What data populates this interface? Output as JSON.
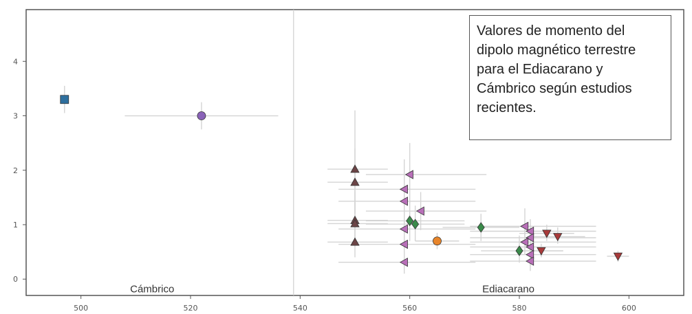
{
  "annotation": "Valores de momento del dipolo magnético terrestre para el Ediacarano y Cámbrico según estudios recientes.",
  "chart_data": {
    "type": "scatter",
    "title": "",
    "xlabel": "",
    "ylabel": "",
    "xlim": [
      490,
      610
    ],
    "ylim": [
      -0.3,
      4.95
    ],
    "xticks": [
      500,
      520,
      540,
      560,
      580,
      600
    ],
    "yticks": [
      0,
      1,
      2,
      3,
      4
    ],
    "grid": false,
    "boundary_x": 538.8,
    "period_labels": [
      {
        "text": "Cámbrico",
        "x": 513,
        "y": -0.18
      },
      {
        "text": "Ediacarano",
        "x": 578,
        "y": -0.18
      }
    ],
    "series": [
      {
        "marker": "square",
        "color": "#2e6f9e",
        "points": [
          {
            "x": 497,
            "y": 3.3,
            "xerr": [
              497,
              497
            ],
            "yerr": [
              3.55,
              3.05
            ]
          }
        ]
      },
      {
        "marker": "circle",
        "color": "#8a63b8",
        "points": [
          {
            "x": 522,
            "y": 3.0,
            "xerr": [
              508,
              536
            ],
            "yerr": [
              3.25,
              2.75
            ]
          }
        ]
      },
      {
        "marker": "triangle-up",
        "color": "#6b4446",
        "points": [
          {
            "x": 550,
            "y": 2.02,
            "xerr": [
              545,
              556
            ],
            "yerr": [
              3.1,
              1.2
            ]
          },
          {
            "x": 550,
            "y": 1.78,
            "xerr": [
              545,
              556
            ],
            "yerr": [
              2.4,
              1.2
            ]
          },
          {
            "x": 550,
            "y": 1.08,
            "xerr": [
              545,
              556
            ],
            "yerr": [
              1.6,
              0.6
            ]
          },
          {
            "x": 550,
            "y": 1.02,
            "xerr": [
              545,
              556
            ],
            "yerr": [
              1.4,
              0.6
            ]
          },
          {
            "x": 550,
            "y": 0.68,
            "xerr": [
              545,
              556
            ],
            "yerr": [
              1.0,
              0.4
            ]
          }
        ]
      },
      {
        "marker": "triangle-left",
        "color": "#b86fb8",
        "points": [
          {
            "x": 560,
            "y": 1.92,
            "xerr": [
              552,
              574
            ],
            "yerr": [
              2.5,
              1.4
            ]
          },
          {
            "x": 559,
            "y": 1.65,
            "xerr": [
              547,
              572
            ],
            "yerr": [
              2.2,
              1.2
            ]
          },
          {
            "x": 559,
            "y": 1.43,
            "xerr": [
              547,
              572
            ],
            "yerr": [
              1.9,
              1.0
            ]
          },
          {
            "x": 562,
            "y": 1.25,
            "xerr": [
              552,
              574
            ],
            "yerr": [
              1.6,
              0.9
            ]
          },
          {
            "x": 559,
            "y": 0.92,
            "xerr": [
              547,
              572
            ],
            "yerr": [
              1.2,
              0.6
            ]
          },
          {
            "x": 559,
            "y": 0.64,
            "xerr": [
              547,
              572
            ],
            "yerr": [
              0.9,
              0.4
            ]
          },
          {
            "x": 559,
            "y": 0.31,
            "xerr": [
              547,
              572
            ],
            "yerr": [
              0.5,
              0.1
            ]
          },
          {
            "x": 581,
            "y": 0.97,
            "xerr": [
              571,
              594
            ],
            "yerr": [
              1.3,
              0.7
            ]
          },
          {
            "x": 582,
            "y": 0.88,
            "xerr": [
              571,
              594
            ],
            "yerr": [
              1.1,
              0.6
            ]
          },
          {
            "x": 582,
            "y": 0.76,
            "xerr": [
              571,
              594
            ],
            "yerr": [
              1.0,
              0.5
            ]
          },
          {
            "x": 581,
            "y": 0.68,
            "xerr": [
              571,
              594
            ],
            "yerr": [
              0.9,
              0.45
            ]
          },
          {
            "x": 582,
            "y": 0.59,
            "xerr": [
              571,
              594
            ],
            "yerr": [
              0.8,
              0.4
            ]
          },
          {
            "x": 582,
            "y": 0.45,
            "xerr": [
              571,
              594
            ],
            "yerr": [
              0.65,
              0.25
            ]
          },
          {
            "x": 582,
            "y": 0.33,
            "xerr": [
              571,
              594
            ],
            "yerr": [
              0.5,
              0.15
            ]
          }
        ]
      },
      {
        "marker": "diamond",
        "color": "#3a8a4a",
        "points": [
          {
            "x": 560,
            "y": 1.07,
            "xerr": [
              552,
              570
            ],
            "yerr": [
              1.45,
              0.7
            ]
          },
          {
            "x": 561,
            "y": 1.01,
            "xerr": [
              552,
              570
            ],
            "yerr": [
              1.35,
              0.7
            ]
          },
          {
            "x": 573,
            "y": 0.95,
            "xerr": [
              566,
              580
            ],
            "yerr": [
              1.2,
              0.7
            ]
          },
          {
            "x": 580,
            "y": 0.52,
            "xerr": [
              573,
              588
            ],
            "yerr": [
              0.8,
              0.3
            ]
          }
        ]
      },
      {
        "marker": "circle",
        "color": "#e8852a",
        "points": [
          {
            "x": 565,
            "y": 0.7,
            "xerr": [
              561,
              569
            ],
            "yerr": [
              0.85,
              0.55
            ]
          }
        ]
      },
      {
        "marker": "triangle-down",
        "color": "#a83a3a",
        "points": [
          {
            "x": 585,
            "y": 0.84,
            "xerr": [
              580,
              590
            ],
            "yerr": [
              1.0,
              0.7
            ]
          },
          {
            "x": 587,
            "y": 0.78,
            "xerr": [
              582,
              592
            ],
            "yerr": [
              0.95,
              0.65
            ]
          },
          {
            "x": 584,
            "y": 0.52,
            "xerr": [
              580,
              588
            ],
            "yerr": [
              0.65,
              0.4
            ]
          },
          {
            "x": 598,
            "y": 0.42,
            "xerr": [
              596,
              600
            ],
            "yerr": [
              0.52,
              0.32
            ]
          }
        ]
      }
    ]
  }
}
